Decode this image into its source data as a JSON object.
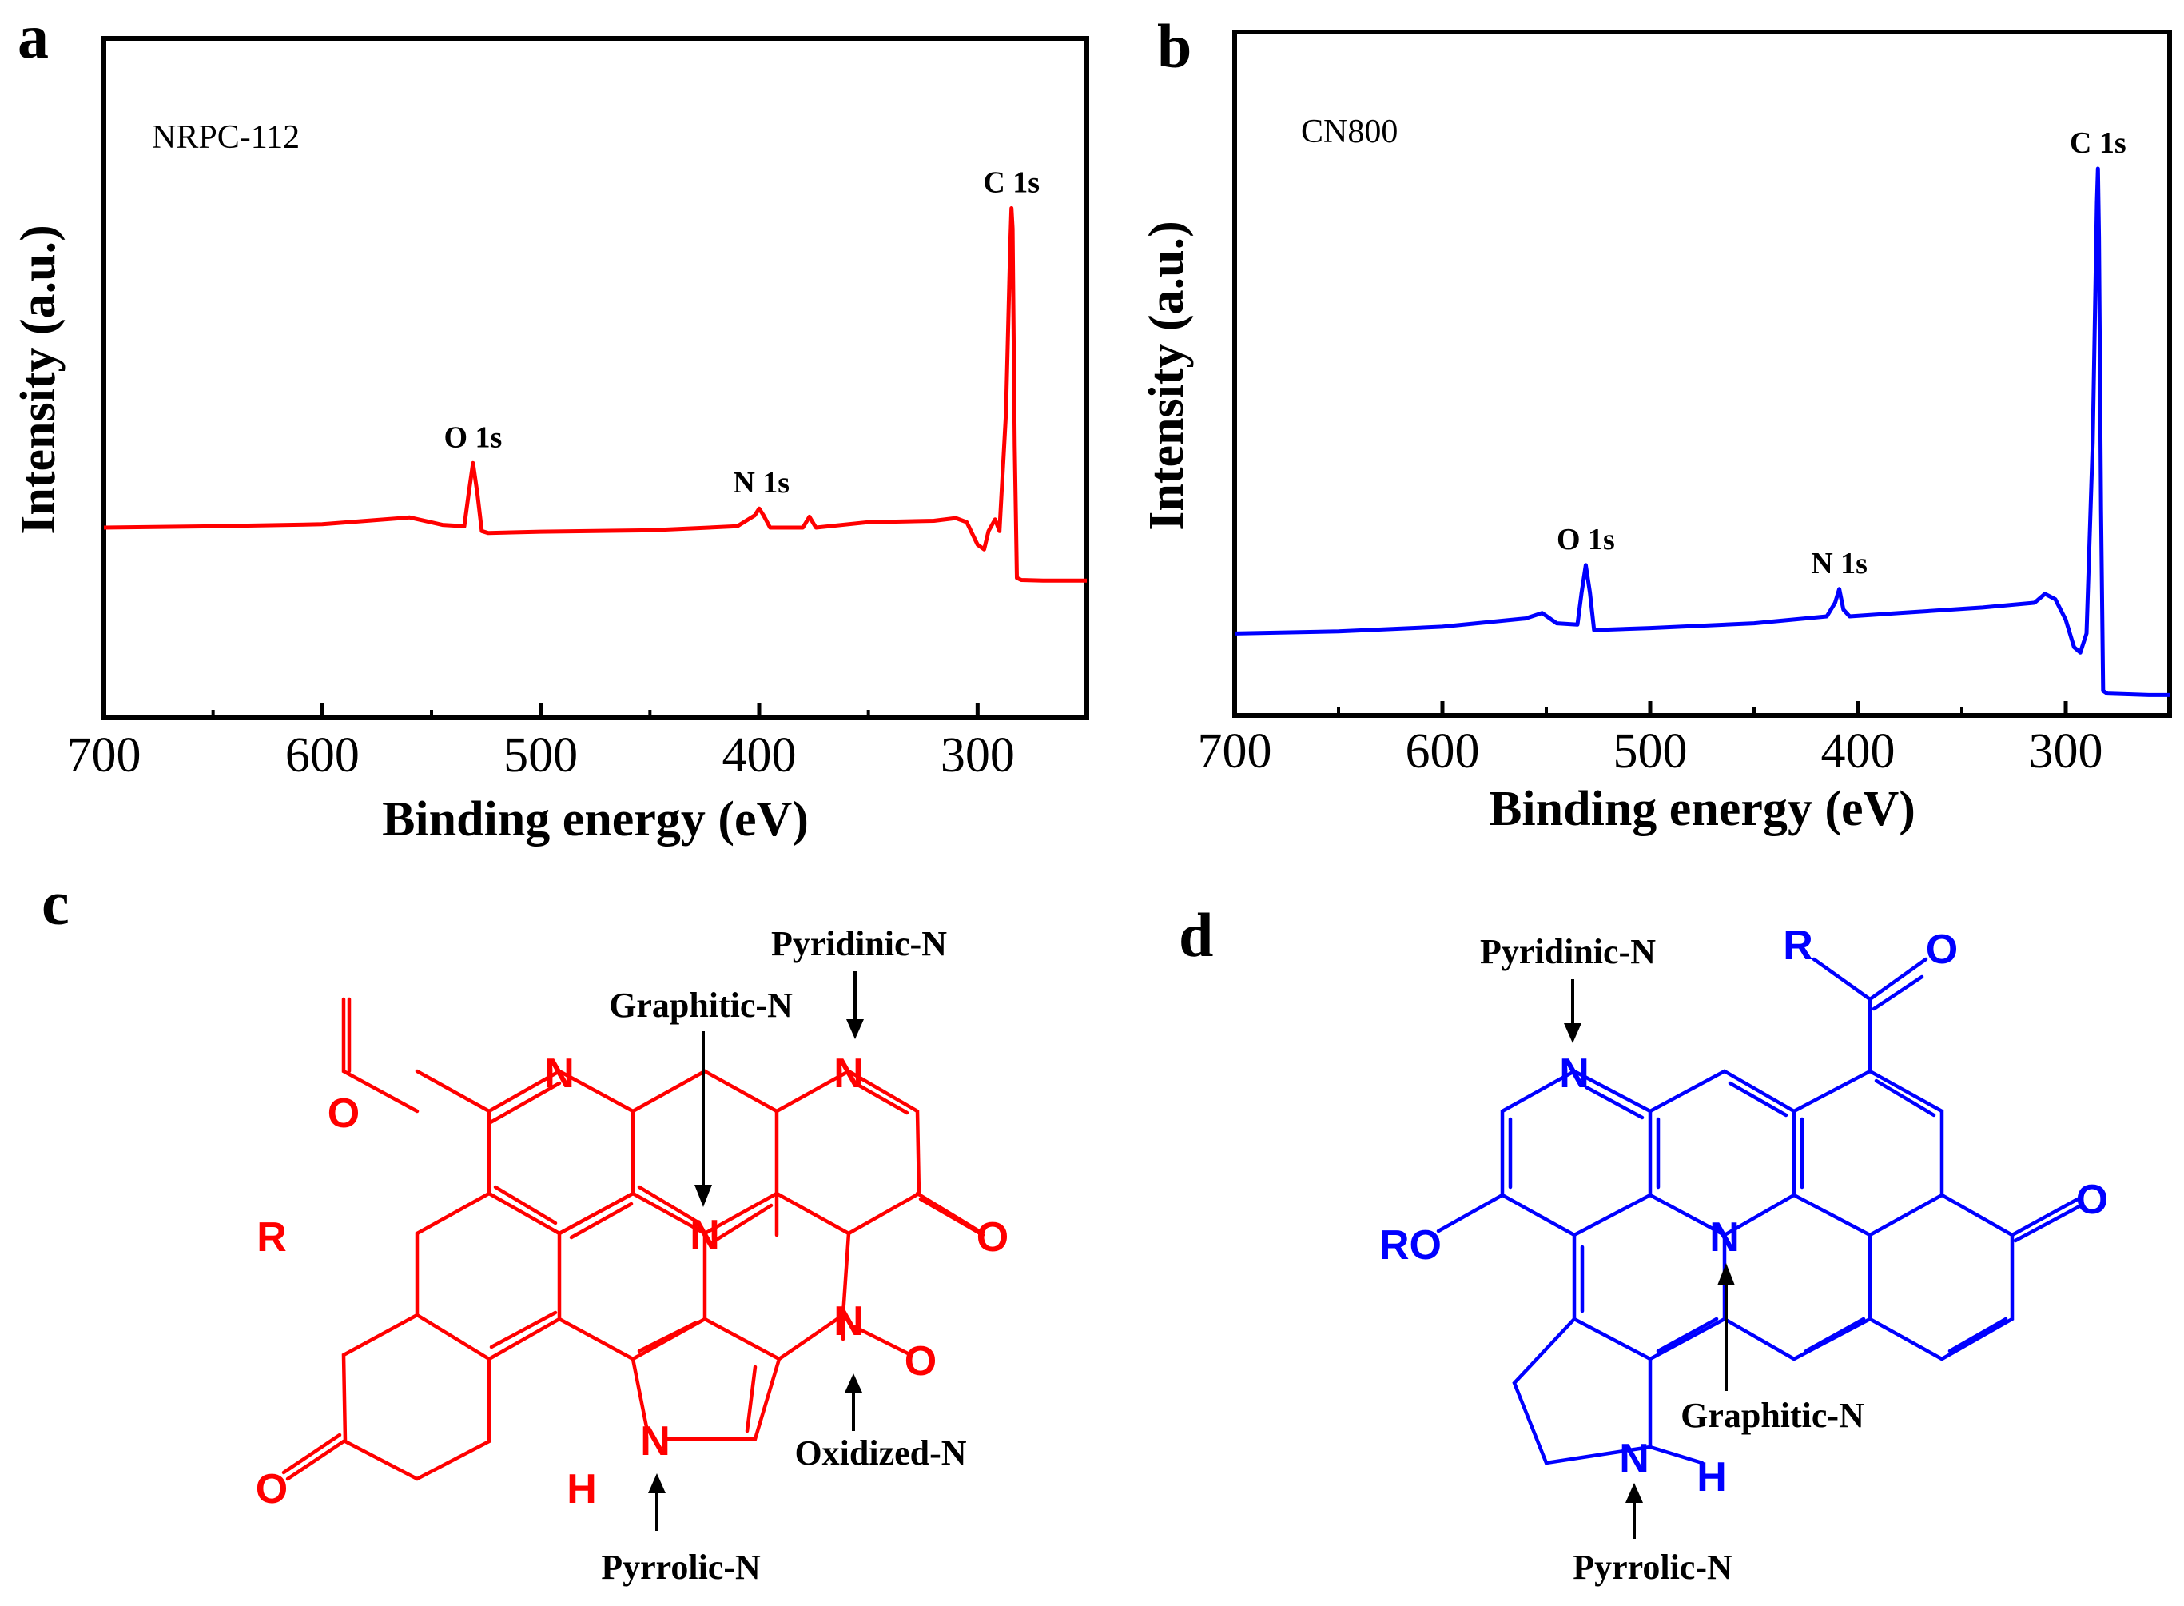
{
  "panels": {
    "a": "a",
    "b": "b",
    "c": "c",
    "d": "d"
  },
  "colors": {
    "red": "#ff0000",
    "blue": "#0000ff",
    "axis": "#000000"
  },
  "chart_data": [
    {
      "type": "line",
      "panel": "a",
      "title": "NRPC-112",
      "xlabel": "Binding energy (eV)",
      "ylabel": "Intensity (a.u.)",
      "xlim": [
        700,
        250
      ],
      "ylim": [
        0,
        100
      ],
      "xticks": [
        700,
        600,
        500,
        400,
        300
      ],
      "color": "#ff0000",
      "peak_labels": [
        {
          "text": "O 1s",
          "x": 531
        },
        {
          "text": "N 1s",
          "x": 399
        },
        {
          "text": "C 1s",
          "x": 284.5
        }
      ],
      "series": [
        {
          "name": "NRPC-112",
          "x": [
            700,
            650,
            600,
            560,
            545,
            535,
            533,
            531,
            529,
            527,
            524,
            500,
            450,
            410,
            402,
            400,
            398,
            395,
            380,
            377,
            374,
            350,
            320,
            310,
            305,
            300,
            297,
            295,
            292,
            290,
            287,
            285,
            284.5,
            284,
            283,
            282,
            280,
            270,
            260,
            250
          ],
          "y": [
            28.0,
            28.2,
            28.5,
            29.5,
            28.4,
            28.2,
            33.0,
            37.5,
            33.0,
            27.5,
            27.2,
            27.4,
            27.6,
            28.2,
            29.8,
            30.8,
            29.8,
            28.0,
            28.0,
            29.6,
            28.0,
            28.8,
            29.0,
            29.4,
            28.8,
            25.5,
            24.8,
            27.5,
            29.2,
            27.5,
            45.0,
            70.0,
            75.0,
            72.0,
            40.0,
            20.6,
            20.3,
            20.2,
            20.2,
            20.2
          ]
        }
      ]
    },
    {
      "type": "line",
      "panel": "b",
      "title": "CN800",
      "xlabel": "Binding energy (eV)",
      "ylabel": "Intensity (a.u.)",
      "xlim": [
        700,
        250
      ],
      "ylim": [
        0,
        100
      ],
      "xticks": [
        700,
        600,
        500,
        400,
        300
      ],
      "color": "#0000ff",
      "peak_labels": [
        {
          "text": "O 1s",
          "x": 531
        },
        {
          "text": "N 1s",
          "x": 409
        },
        {
          "text": "C 1s",
          "x": 284.5
        }
      ],
      "series": [
        {
          "name": "CN800",
          "x": [
            700,
            650,
            600,
            560,
            552,
            545,
            535,
            533,
            531,
            529,
            527,
            500,
            450,
            415,
            411,
            409,
            407,
            404,
            380,
            340,
            315,
            310,
            305,
            300,
            296,
            293,
            290,
            287,
            285,
            284.5,
            284,
            283,
            282,
            280,
            270,
            260,
            250
          ],
          "y": [
            12.0,
            12.3,
            13.0,
            14.2,
            15.0,
            13.5,
            13.3,
            18.0,
            22.0,
            18.0,
            12.5,
            12.8,
            13.5,
            14.5,
            16.5,
            18.5,
            15.5,
            14.5,
            15.0,
            15.8,
            16.5,
            17.8,
            17.0,
            14.0,
            10.0,
            9.2,
            12.0,
            40.0,
            75.0,
            80.0,
            70.0,
            30.0,
            3.6,
            3.2,
            3.1,
            3.0,
            3.0
          ]
        }
      ]
    }
  ],
  "structure_c": {
    "atoms": {
      "n_pyridinic_left": "N",
      "n_pyridinic": "N",
      "n_graphitic": "N",
      "n_oxidized": "N",
      "n_pyrrolic": "N",
      "h_pyrrolic": "H",
      "r_group": "R",
      "o_keto_top": "O",
      "o_keto_right": "O",
      "o_oxidized": "O",
      "o_keto_left": "O"
    },
    "labels": {
      "pyridinic": "Pyridinic-N",
      "graphitic": "Graphitic-N",
      "oxidized": "Oxidized-N",
      "pyrrolic": "Pyrrolic-N"
    }
  },
  "structure_d": {
    "atoms": {
      "n_pyridinic": "N",
      "n_graphitic": "N",
      "n_pyrrolic": "N",
      "h_pyrrolic": "H",
      "r_group": "R",
      "o_acyl": "O",
      "o_keto": "O",
      "ro_group": "RO"
    },
    "labels": {
      "pyridinic": "Pyridinic-N",
      "graphitic": "Graphitic-N",
      "pyrrolic": "Pyrrolic-N"
    }
  }
}
